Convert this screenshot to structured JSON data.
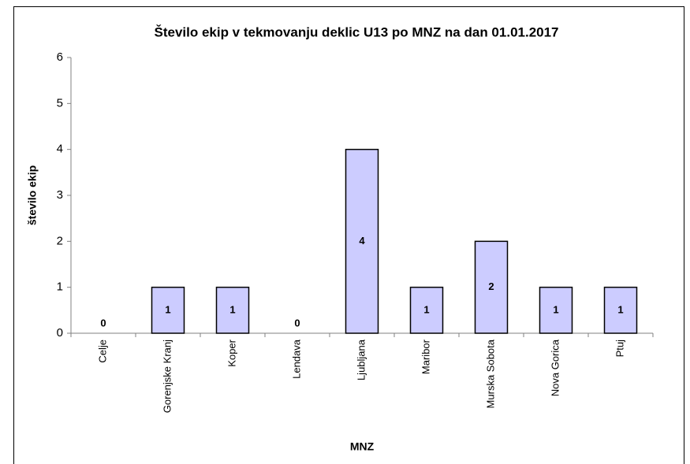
{
  "chart_data": {
    "type": "bar",
    "title": "Število ekip v tekmovanju deklic U13 po MNZ na dan 01.01.2017",
    "x_label": "MNZ",
    "y_label": "število ekip",
    "categories": [
      "Celje",
      "Gorenjske Kranj",
      "Koper",
      "Lendava",
      "Ljubljana",
      "Maribor",
      "Murska Sobota",
      "Nova Gorica",
      "Ptuj"
    ],
    "values": [
      0,
      1,
      1,
      0,
      4,
      1,
      2,
      1,
      1
    ],
    "color": "#ccccff",
    "ylim": [
      0,
      6
    ],
    "yticks": [
      0,
      1,
      2,
      3,
      4,
      5,
      6
    ],
    "grid": false
  }
}
